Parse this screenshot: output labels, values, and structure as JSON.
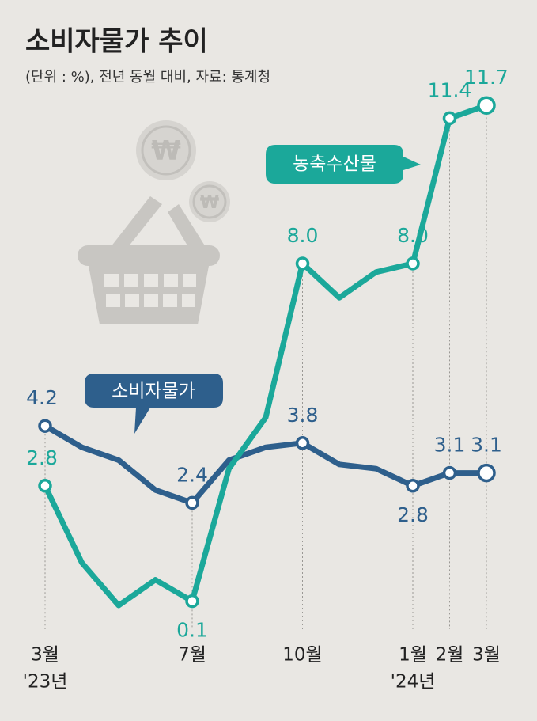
{
  "chart_data": {
    "type": "line",
    "title": "소비자물가 추이",
    "subtitle": "(단위 : %), 전년 동월 대비, 자료: 통계청",
    "categories": [
      "3월",
      null,
      null,
      null,
      "7월",
      null,
      null,
      "10월",
      null,
      null,
      "1월",
      "2월",
      "3월"
    ],
    "x_year_labels": [
      "'23년",
      null,
      null,
      null,
      null,
      null,
      null,
      null,
      null,
      null,
      "'24년",
      null,
      null
    ],
    "ylim": [
      0,
      12.5
    ],
    "series": [
      {
        "name": "소비자물가",
        "color": "#2e5f8c",
        "values": [
          4.2,
          3.7,
          3.4,
          2.7,
          2.4,
          3.4,
          3.7,
          3.8,
          3.3,
          3.2,
          2.8,
          3.1,
          3.1
        ],
        "value_labels": [
          "4.2",
          null,
          null,
          null,
          "2.4",
          null,
          null,
          "3.8",
          null,
          null,
          "2.8",
          "3.1",
          "3.1"
        ]
      },
      {
        "name": "농축수산물",
        "color": "#1ba89a",
        "values": [
          2.8,
          1.0,
          0.0,
          0.6,
          0.1,
          3.2,
          4.4,
          8.0,
          7.2,
          7.8,
          8.0,
          11.4,
          11.7
        ],
        "value_labels": [
          "2.8",
          null,
          null,
          null,
          "0.1",
          null,
          null,
          "8.0",
          null,
          null,
          "8.0",
          "11.4",
          "11.7"
        ]
      }
    ]
  }
}
